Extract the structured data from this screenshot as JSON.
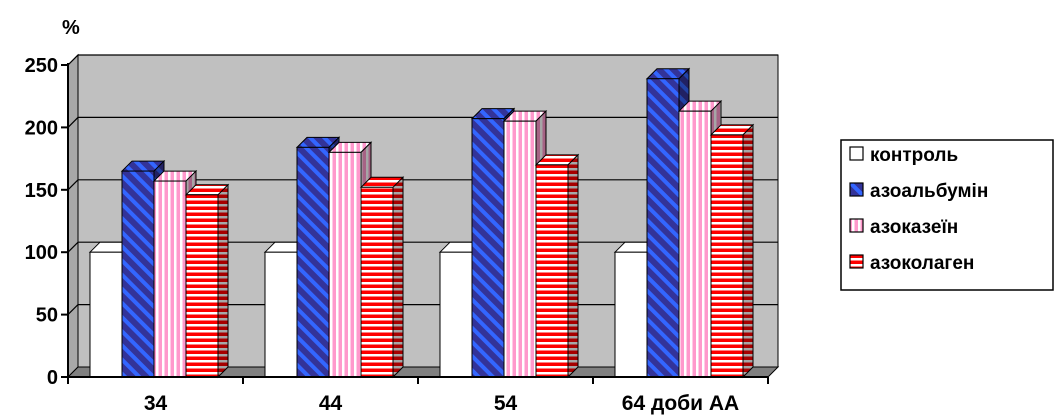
{
  "chart_data": {
    "type": "bar",
    "y_unit_label": "%",
    "categories": [
      "34",
      "44",
      "54",
      "64 доби АА"
    ],
    "series": [
      {
        "name": "контроль",
        "values": [
          100,
          100,
          100,
          100
        ],
        "pattern": "plain",
        "color": "#ffffff"
      },
      {
        "name": "азоальбумін",
        "values": [
          165,
          184,
          207,
          239
        ],
        "pattern": "diagonal-stripes",
        "color": "#333399",
        "stripe_color": "#3366ff"
      },
      {
        "name": "азоказеїн",
        "values": [
          157,
          180,
          205,
          213
        ],
        "pattern": "vertical-stripes",
        "color": "#ff99cc",
        "stripe_color": "#ffffff"
      },
      {
        "name": "азоколаген",
        "values": [
          146,
          152,
          170,
          194
        ],
        "pattern": "horizontal-stripes",
        "color": "#ff0000",
        "stripe_color": "#ffffff"
      }
    ],
    "ylim": [
      0,
      250
    ],
    "yticks": [
      0,
      50,
      100,
      150,
      200,
      250
    ],
    "grid": true,
    "plot_background": "#c0c0c0",
    "legend_position": "right"
  }
}
